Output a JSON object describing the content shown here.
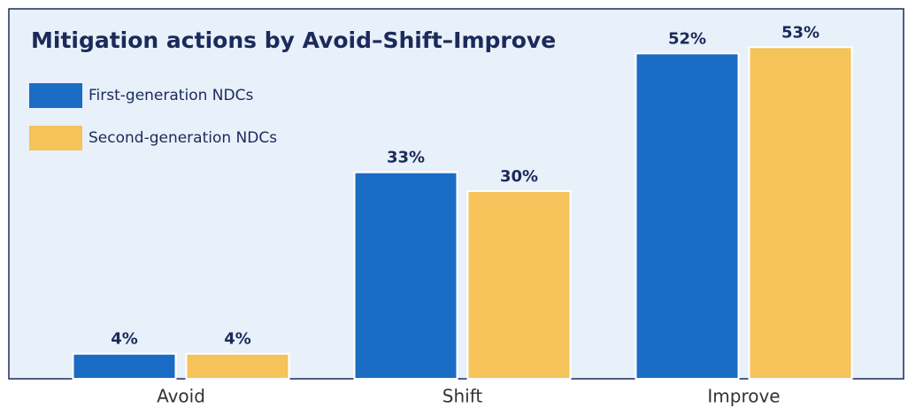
{
  "chart_data": {
    "type": "bar",
    "title": "Mitigation actions by Avoid–Shift–Improve",
    "categories": [
      "Avoid",
      "Shift",
      "Improve"
    ],
    "series": [
      {
        "name": "First-generation NDCs",
        "color": "#1a6cc4",
        "values": [
          4,
          33,
          52
        ],
        "value_labels": [
          "4%",
          "33%",
          "52%"
        ]
      },
      {
        "name": "Second-generation NDCs",
        "color": "#f5c35a",
        "values": [
          4,
          30,
          53
        ],
        "value_labels": [
          "4%",
          "30%",
          "53%"
        ]
      }
    ]
  }
}
